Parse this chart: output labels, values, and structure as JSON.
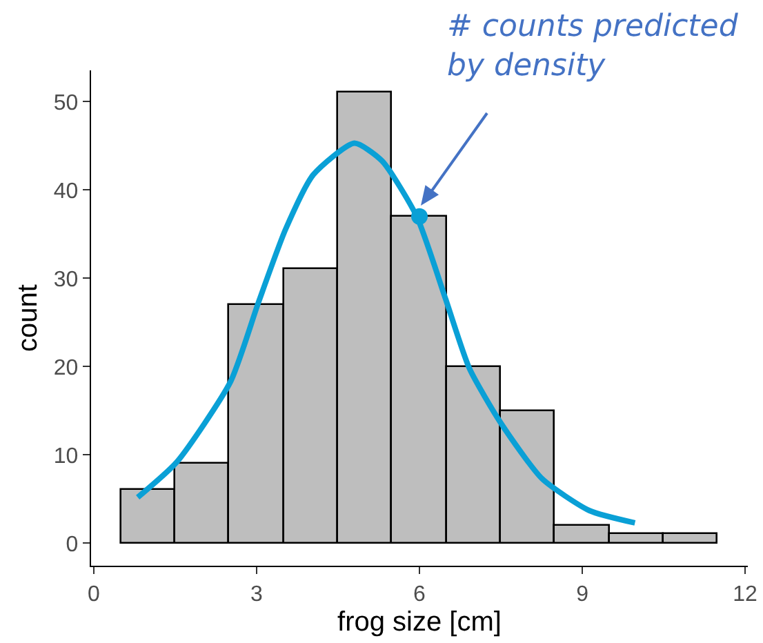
{
  "chart_data": {
    "type": "histogram",
    "bins": [
      0.5,
      1.5,
      2.5,
      3.5,
      4.5,
      5.5,
      6.5,
      7.5,
      8.5,
      9.5,
      10.5,
      11.5
    ],
    "values": [
      6,
      9,
      27,
      31,
      51,
      37,
      20,
      15,
      2,
      1,
      1
    ],
    "color": "#bebebe",
    "series": [
      {
        "type": "line",
        "color": "#0aa0d6",
        "x": [
          0.81,
          1.53,
          2.52,
          3.03,
          3.53,
          4.04,
          4.8,
          5.31,
          5.95,
          6.48,
          6.92,
          7.5,
          8.26,
          9.13,
          9.97
        ],
        "values": [
          5.2,
          9.2,
          18.3,
          27.2,
          35.5,
          41.7,
          45.3,
          43.3,
          37,
          27.7,
          19.8,
          13.6,
          7.3,
          3.7,
          2.3
        ]
      },
      {
        "type": "scatter",
        "color": "#0aa0d6",
        "marker": "circle",
        "x": [
          6
        ],
        "values": [
          37
        ]
      }
    ],
    "xlabel": "frog size [cm]",
    "ylabel": "count",
    "xlim": [
      -0.05,
      12.05
    ],
    "xticks": [
      0,
      3,
      6,
      9,
      12
    ],
    "ylim": [
      -2.55,
      53.55
    ],
    "yticks": [
      0,
      10,
      20,
      30,
      40,
      50
    ],
    "annotations": [
      "# counts predicted\nby density"
    ],
    "grid": false
  }
}
